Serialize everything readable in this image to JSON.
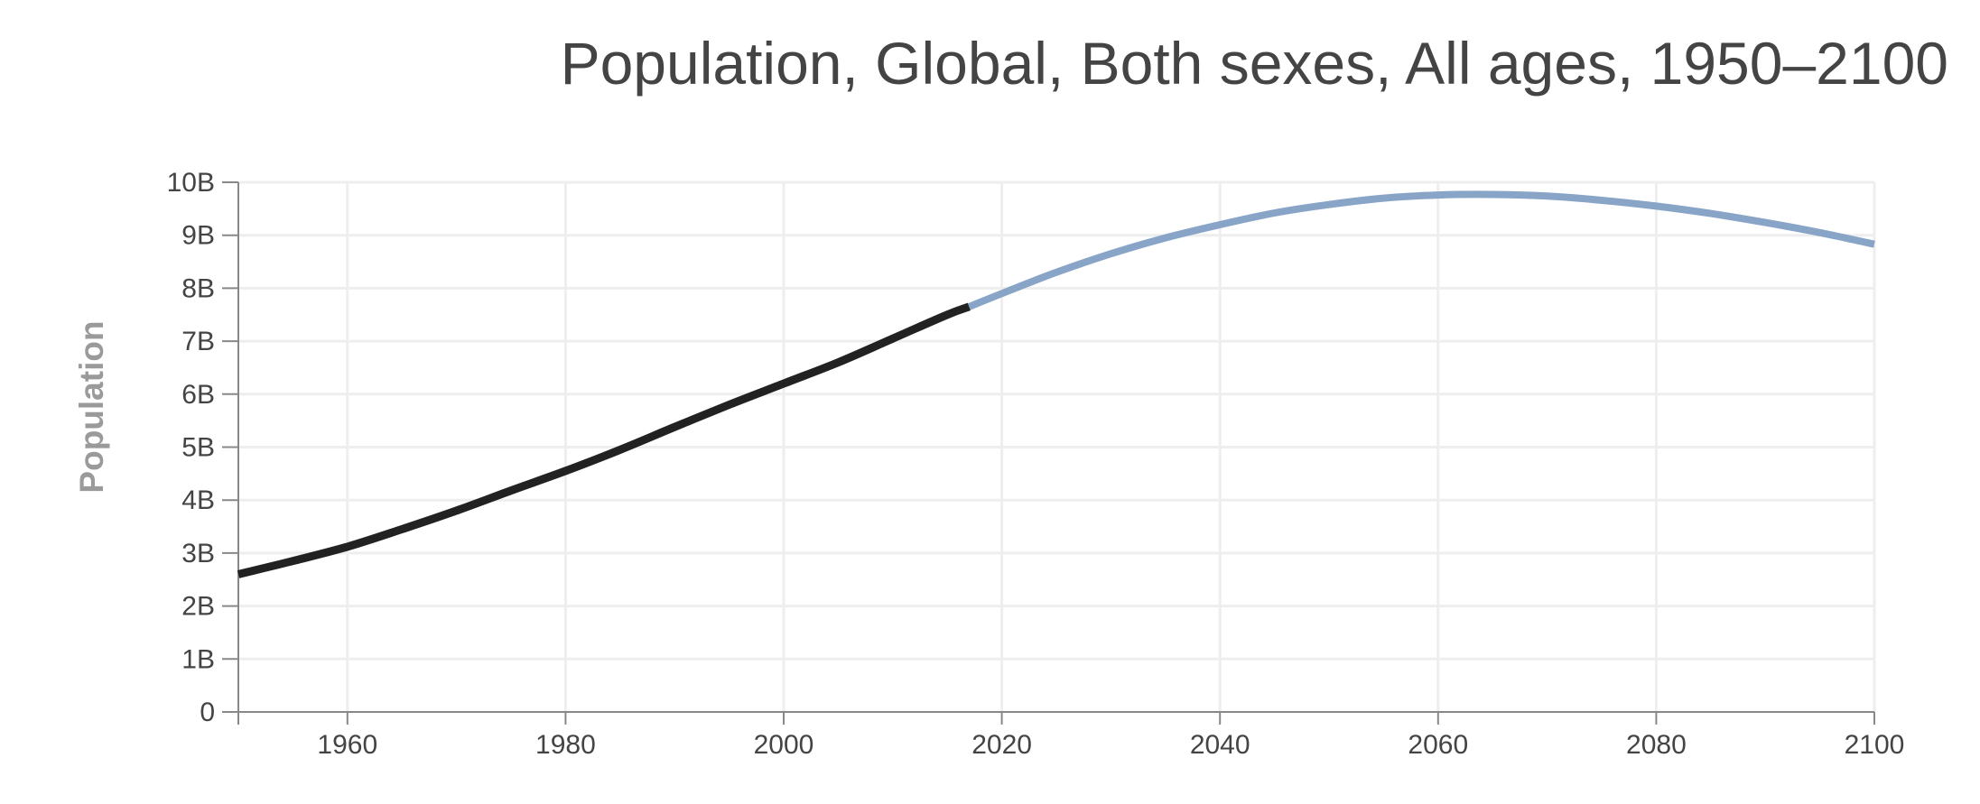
{
  "chart_data": {
    "type": "line",
    "title": "Population, Global, Both sexes, All ages, 1950–2100",
    "xlabel": "",
    "ylabel": "Population",
    "xlim": [
      1950,
      2100
    ],
    "ylim": [
      0,
      10000000000
    ],
    "grid": true,
    "x_ticks": [
      1960,
      1980,
      2000,
      2020,
      2040,
      2060,
      2080,
      2100
    ],
    "y_ticks": [
      0,
      1000000000,
      2000000000,
      3000000000,
      4000000000,
      5000000000,
      6000000000,
      7000000000,
      8000000000,
      9000000000,
      10000000000
    ],
    "y_tick_labels": [
      "0",
      "1B",
      "2B",
      "3B",
      "4B",
      "5B",
      "6B",
      "7B",
      "8B",
      "9B",
      "10B"
    ],
    "series": [
      {
        "color": "#222222",
        "x": [
          1950,
          1955,
          1960,
          1965,
          1970,
          1975,
          1980,
          1985,
          1990,
          1995,
          2000,
          2005,
          2010,
          2015,
          2017
        ],
        "y": [
          2600000000,
          2850000000,
          3120000000,
          3450000000,
          3800000000,
          4180000000,
          4550000000,
          4950000000,
          5380000000,
          5800000000,
          6200000000,
          6600000000,
          7050000000,
          7500000000,
          7650000000
        ]
      },
      {
        "color": "#88a5c8",
        "x": [
          2017,
          2020,
          2025,
          2030,
          2035,
          2040,
          2045,
          2050,
          2055,
          2060,
          2065,
          2070,
          2075,
          2080,
          2085,
          2090,
          2095,
          2100
        ],
        "y": [
          7650000000,
          7900000000,
          8300000000,
          8650000000,
          8950000000,
          9200000000,
          9420000000,
          9580000000,
          9700000000,
          9760000000,
          9770000000,
          9740000000,
          9660000000,
          9550000000,
          9410000000,
          9240000000,
          9050000000,
          8830000000
        ]
      }
    ]
  }
}
